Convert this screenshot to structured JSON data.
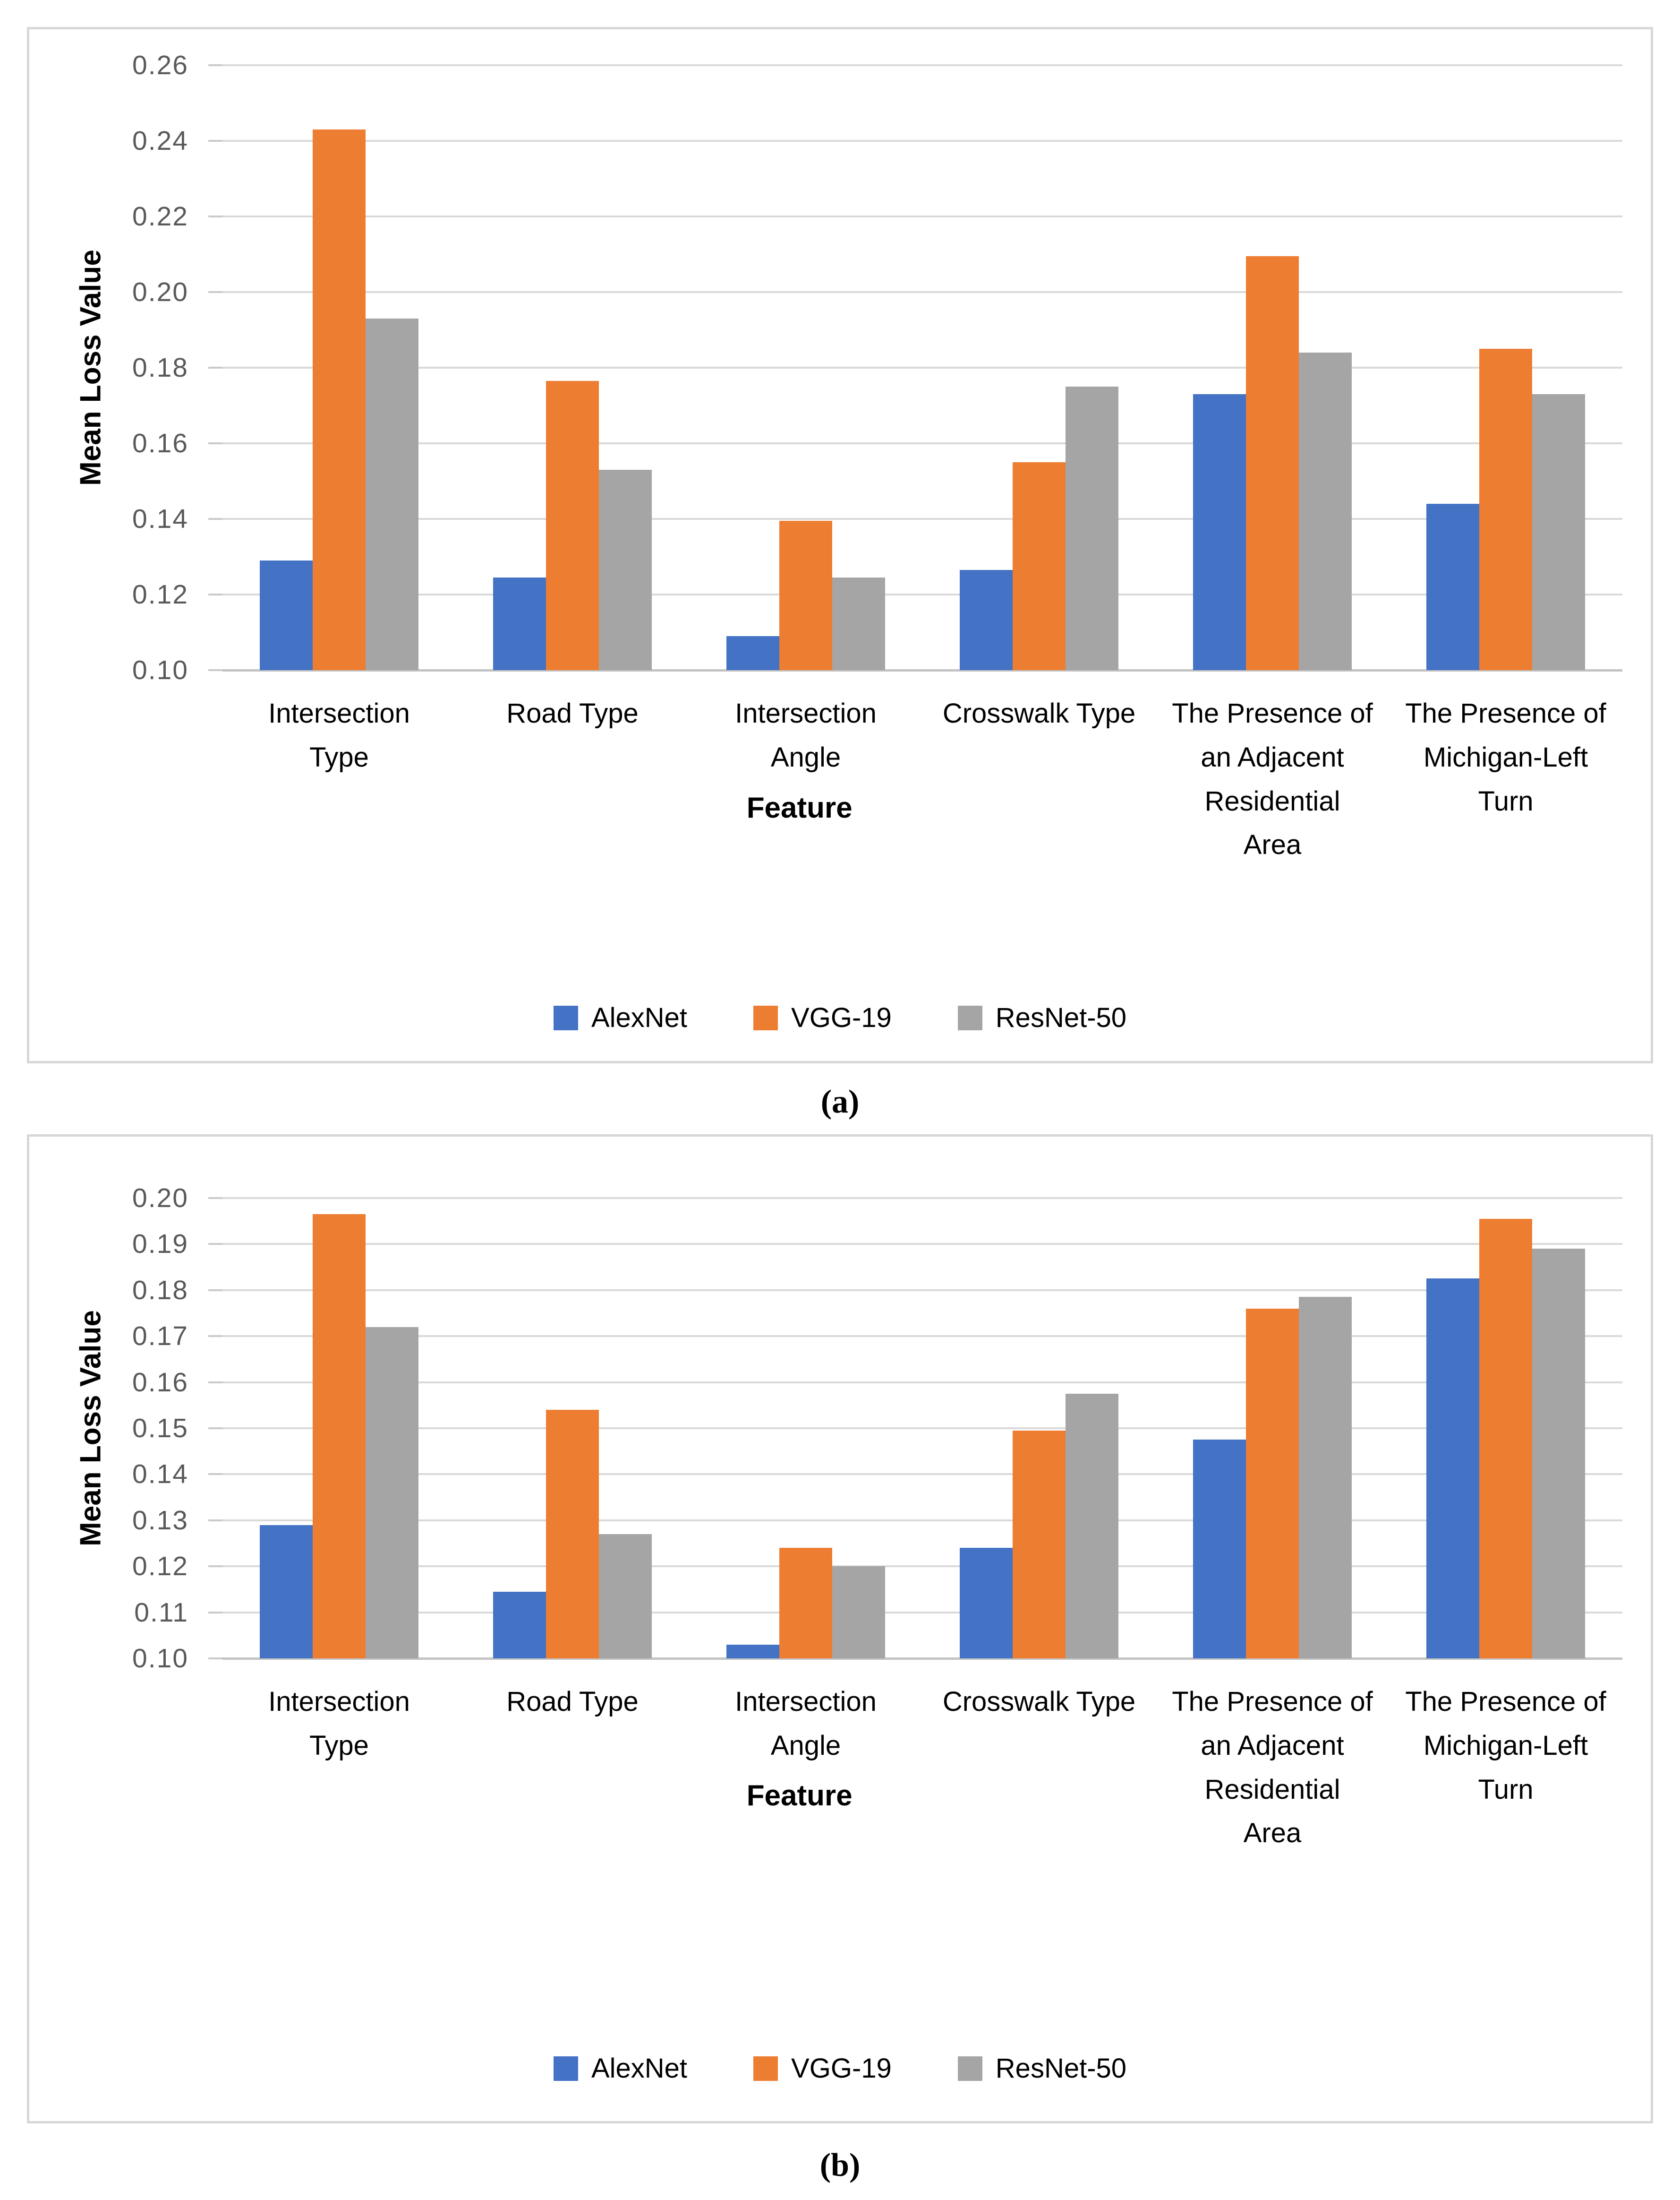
{
  "axis": {
    "y_title": "Mean Loss Value",
    "x_title": "Feature"
  },
  "legend": {
    "items": [
      {
        "label": "AlexNet",
        "color": "#4472C4"
      },
      {
        "label": "VGG-19",
        "color": "#ED7D31"
      },
      {
        "label": "ResNet-50",
        "color": "#A5A5A5"
      }
    ]
  },
  "captions": {
    "a": "(a)",
    "b": "(b)"
  },
  "colors": {
    "gridline": "#D9D9D9",
    "axis_line": "#C3C3C3",
    "tick_text": "#595959",
    "label_text": "#000000",
    "box_border": "#D7D7D7"
  },
  "category_lines": [
    [
      "Intersection",
      "Type"
    ],
    [
      "Road Type"
    ],
    [
      "Intersection",
      "Angle"
    ],
    [
      "Crosswalk Type"
    ],
    [
      "The Presence of",
      "an Adjacent",
      "Residential",
      "Area"
    ],
    [
      "The Presence of",
      "Michigan-Left",
      "Turn"
    ]
  ],
  "chart_data": [
    {
      "id": "a",
      "type": "bar",
      "panel_caption": "(a)",
      "xlabel": "Feature",
      "ylabel": "Mean Loss Value",
      "ylim": [
        0.1,
        0.26
      ],
      "ytick_step": 0.02,
      "y_ticks": [
        "0.26",
        "0.24",
        "0.22",
        "0.20",
        "0.18",
        "0.16",
        "0.14",
        "0.12",
        "0.10"
      ],
      "grid": true,
      "legend_position": "bottom",
      "categories": [
        "Intersection Type",
        "Road Type",
        "Intersection Angle",
        "Crosswalk Type",
        "The Presence of an Adjacent Residential Area",
        "The Presence of Michigan-Left Turn"
      ],
      "series": [
        {
          "name": "AlexNet",
          "color": "#4472C4",
          "values": [
            0.129,
            0.1245,
            0.109,
            0.1265,
            0.173,
            0.144
          ]
        },
        {
          "name": "VGG-19",
          "color": "#ED7D31",
          "values": [
            0.243,
            0.1765,
            0.1395,
            0.155,
            0.2095,
            0.185
          ]
        },
        {
          "name": "ResNet-50",
          "color": "#A5A5A5",
          "values": [
            0.193,
            0.153,
            0.1245,
            0.175,
            0.184,
            0.173
          ]
        }
      ]
    },
    {
      "id": "b",
      "type": "bar",
      "panel_caption": "(b)",
      "xlabel": "Feature",
      "ylabel": "Mean Loss Value",
      "ylim": [
        0.1,
        0.2
      ],
      "ytick_step": 0.01,
      "y_ticks": [
        "0.20",
        "0.19",
        "0.18",
        "0.17",
        "0.16",
        "0.15",
        "0.14",
        "0.13",
        "0.12",
        "0.11",
        "0.10"
      ],
      "grid": true,
      "legend_position": "bottom",
      "categories": [
        "Intersection Type",
        "Road Type",
        "Intersection Angle",
        "Crosswalk Type",
        "The Presence of an Adjacent Residential Area",
        "The Presence of Michigan-Left Turn"
      ],
      "series": [
        {
          "name": "AlexNet",
          "color": "#4472C4",
          "values": [
            0.129,
            0.1145,
            0.103,
            0.124,
            0.1475,
            0.1825
          ]
        },
        {
          "name": "VGG-19",
          "color": "#ED7D31",
          "values": [
            0.1965,
            0.154,
            0.124,
            0.1495,
            0.176,
            0.1955
          ]
        },
        {
          "name": "ResNet-50",
          "color": "#A5A5A5",
          "values": [
            0.172,
            0.127,
            0.12,
            0.1575,
            0.1785,
            0.189
          ]
        }
      ]
    }
  ]
}
